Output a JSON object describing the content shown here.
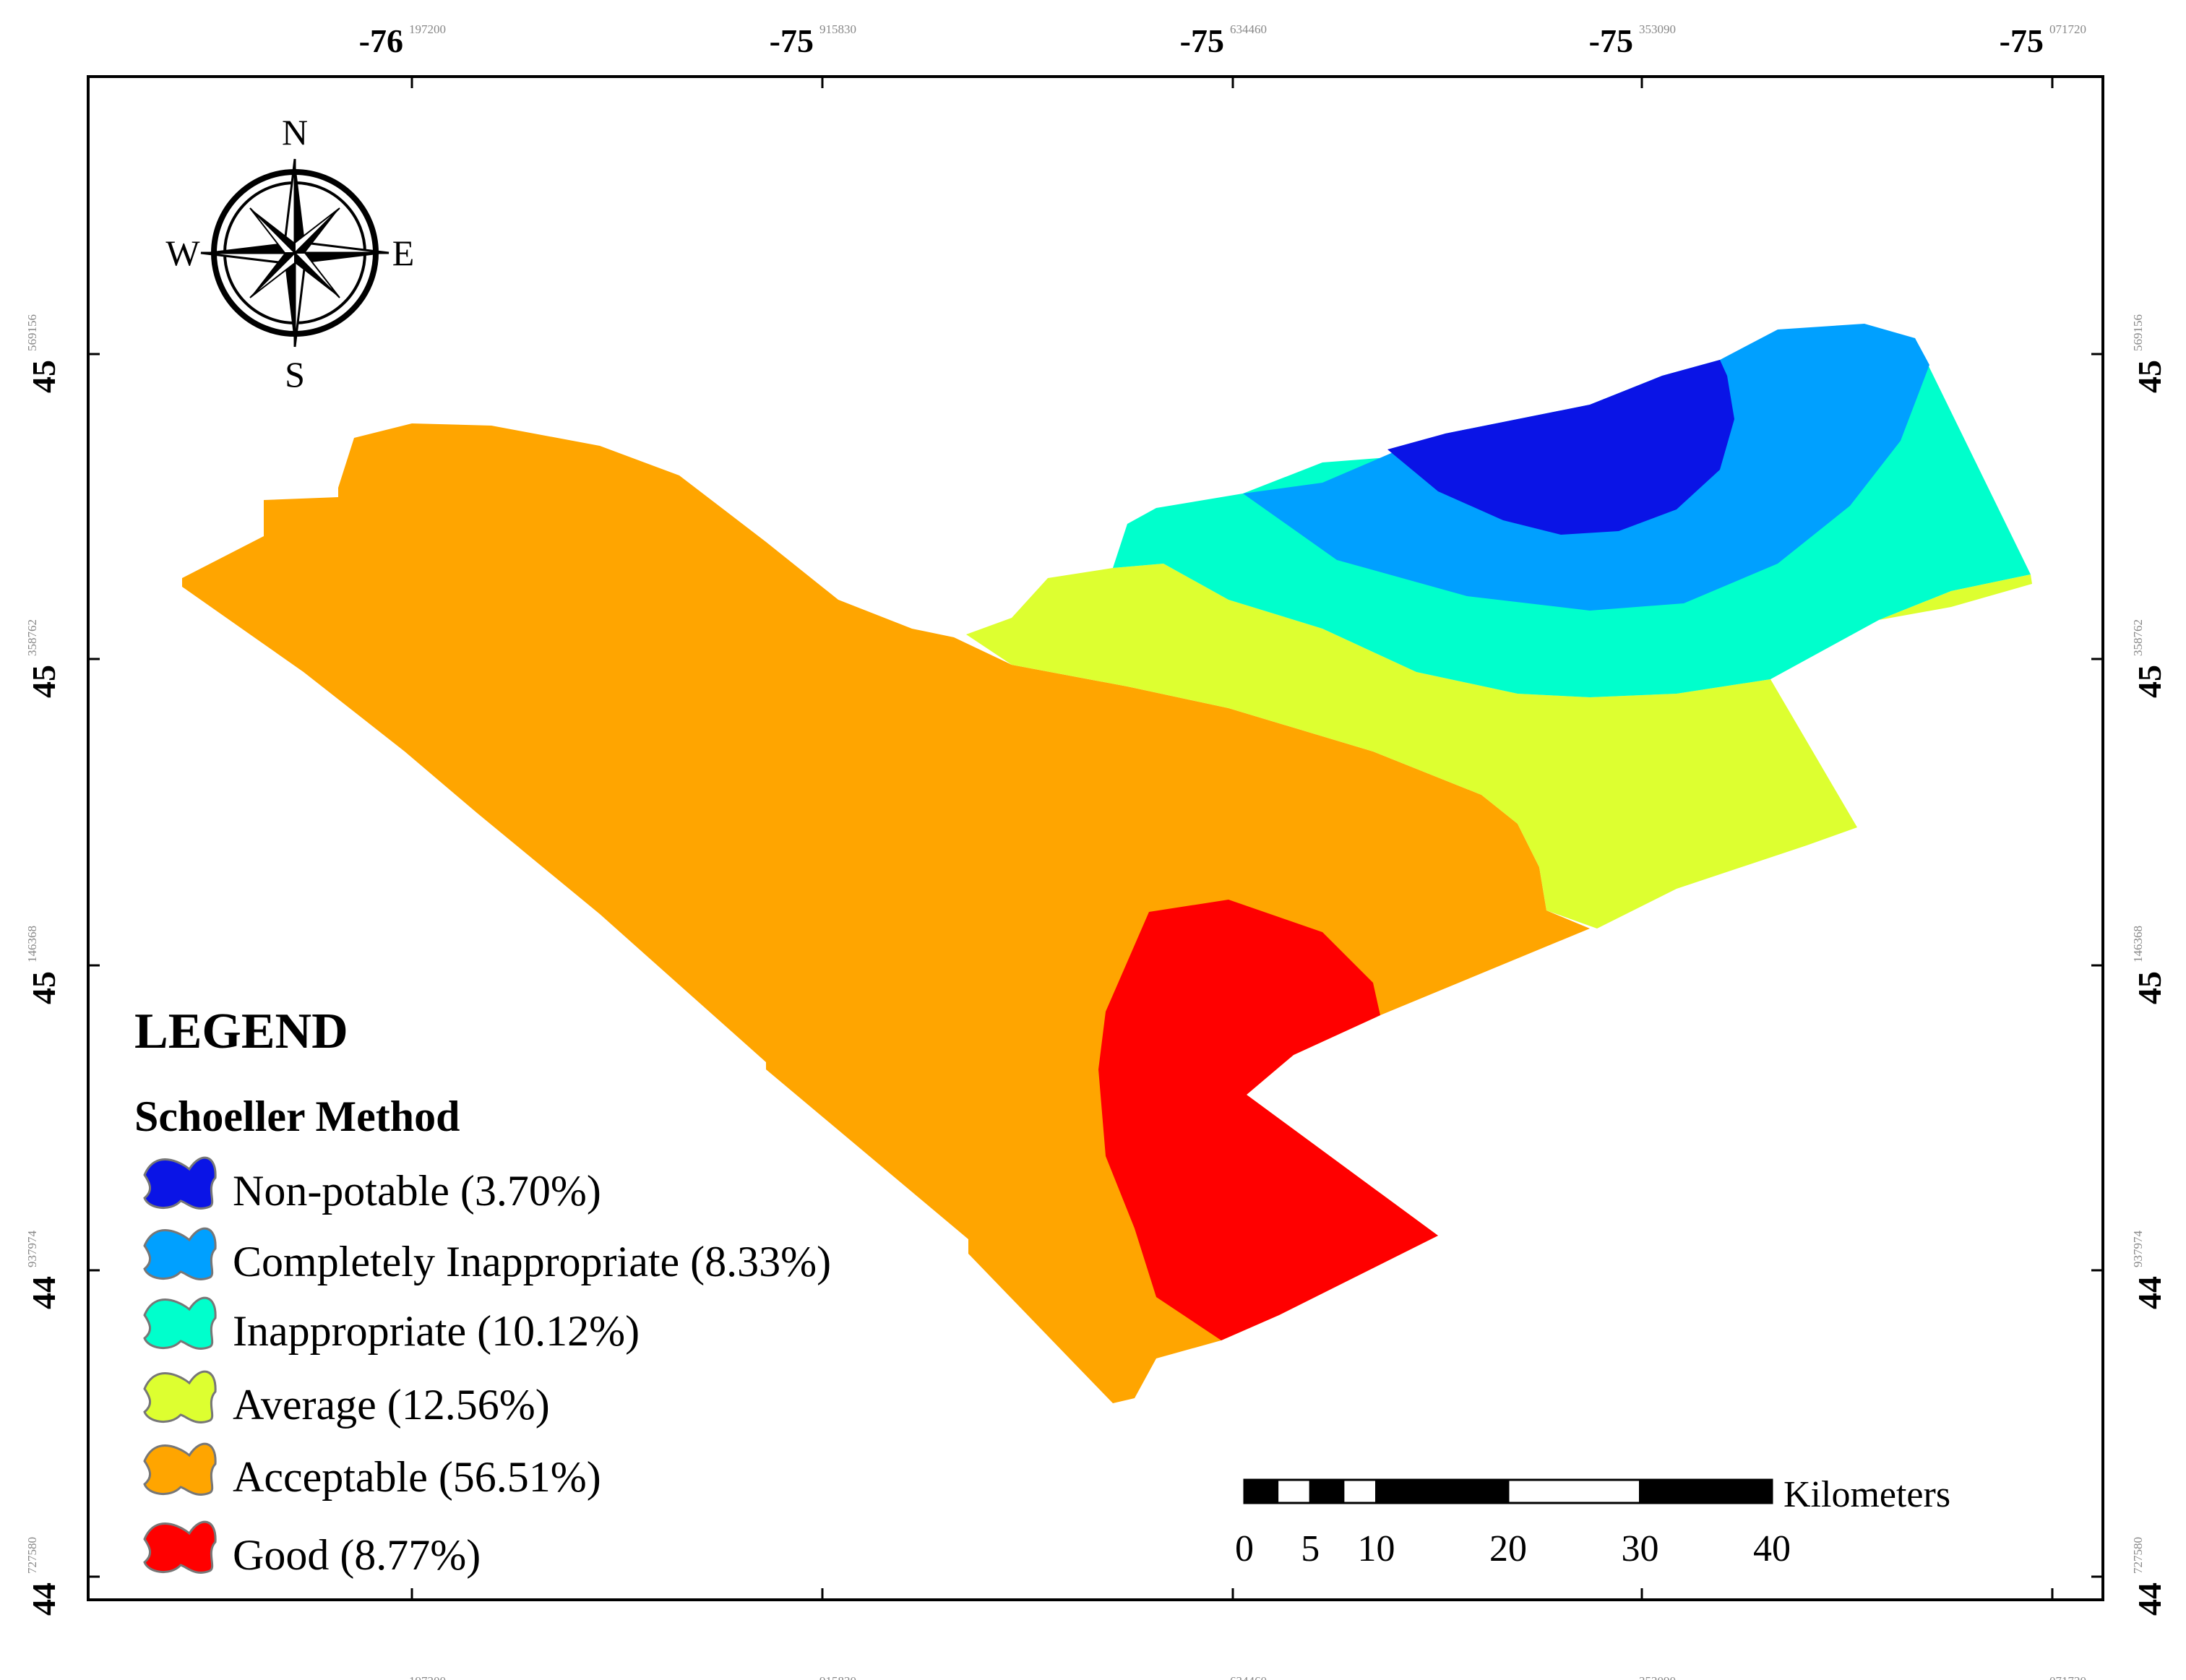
{
  "map": {
    "lon_ticks": [
      {
        "main": "-76",
        "sup": "197200"
      },
      {
        "main": "-75",
        "sup": "915830"
      },
      {
        "main": "-75",
        "sup": "634460"
      },
      {
        "main": "-75",
        "sup": "353090"
      },
      {
        "main": "-75",
        "sup": "071720"
      }
    ],
    "lat_ticks": [
      {
        "main": "45",
        "sup": "569156"
      },
      {
        "main": "45",
        "sup": "358762"
      },
      {
        "main": "45",
        "sup": "146368"
      },
      {
        "main": "44",
        "sup": "937974"
      },
      {
        "main": "44",
        "sup": "727580"
      }
    ]
  },
  "compass": {
    "n": "N",
    "s": "S",
    "e": "E",
    "w": "W"
  },
  "legend": {
    "title": "LEGEND",
    "subtitle": "Schoeller Method",
    "items": [
      {
        "label": "Non-potable (3.70%)",
        "color": "#0a14e6"
      },
      {
        "label": "Completely Inappropriate (8.33%)",
        "color": "#00a0ff"
      },
      {
        "label": "Inappropriate (10.12%)",
        "color": "#00ffcc"
      },
      {
        "label": "Average (12.56%)",
        "color": "#ddff30"
      },
      {
        "label": "Acceptable (56.51%)",
        "color": "#ffa500"
      },
      {
        "label": "Good  (8.77%)",
        "color": "#ff0000"
      }
    ]
  },
  "scale_bar": {
    "unit": "Kilometers",
    "labels": [
      "0",
      "5",
      "10",
      "20",
      "30",
      "40"
    ]
  }
}
